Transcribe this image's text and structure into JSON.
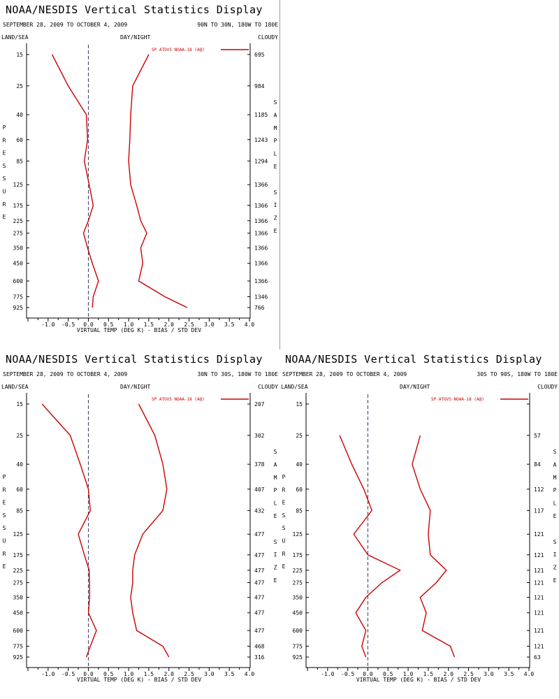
{
  "colors": {
    "series": "#cc0000",
    "zero_line": "#3a3a6a"
  },
  "chart_data": [
    {
      "type": "line",
      "title": "NOAA/NESDIS Vertical Statistics Display",
      "dates": "SEPTEMBER 28, 2009 TO OCTOBER 4, 2009",
      "region": "90N TO 30N, 180W TO 180E",
      "left_header": "LAND/SEA",
      "center_header": "DAY/NIGHT",
      "right_header": "CLOUDY",
      "legend": "SP ATOVS NOAA-18 (A@)",
      "legend_placement": "top-right",
      "xlabel": "VIRTUAL TEMP (DEG K) - BIAS / STD DEV",
      "ylabel": "PRESSURE",
      "y2label": "SAMPLE SIZE",
      "xlim": [
        -1.5,
        4.0
      ],
      "x_ticks": [
        "-1.0",
        "-0.5",
        "0.0",
        "0.5",
        "1.0",
        "1.5",
        "2.0",
        "2.5",
        "3.0",
        "3.5",
        "4.0"
      ],
      "pressure_levels": [
        "15",
        "25",
        "40",
        "60",
        "85",
        "125",
        "175",
        "225",
        "275",
        "350",
        "450",
        "600",
        "775",
        "925"
      ],
      "sample_size": [
        "695",
        "984",
        "1185",
        "1243",
        "1294",
        "1366",
        "1366",
        "1366",
        "1366",
        "1366",
        "1366",
        "1366",
        "1346",
        "766"
      ],
      "series": [
        {
          "values": [
            -0.9,
            -0.5,
            -0.05,
            -0.02,
            -0.1,
            0.02,
            0.12,
            0.0,
            -0.12,
            -0.02,
            0.1,
            0.25,
            0.12,
            0.1
          ]
        },
        {
          "values": [
            1.5,
            1.1,
            1.05,
            1.03,
            1.0,
            1.05,
            1.2,
            1.3,
            1.45,
            1.3,
            1.35,
            1.25,
            1.9,
            2.45
          ]
        }
      ]
    },
    {
      "type": "line",
      "title": "NOAA/NESDIS Vertical Statistics Display",
      "dates": "SEPTEMBER 28, 2009 TO OCTOBER 4, 2009",
      "region": "30N TO 30S, 180W TO 180E",
      "left_header": "LAND/SEA",
      "center_header": "DAY/NIGHT",
      "right_header": "CLOUDY",
      "legend": "SP ATOVS NOAA-18 (A@)",
      "legend_placement": "top-right",
      "xlabel": "VIRTUAL TEMP (DEG K) - BIAS / STD DEV",
      "ylabel": "PRESSURE",
      "y2label": "SAMPLE SIZE",
      "xlim": [
        -1.5,
        4.0
      ],
      "x_ticks": [
        "-1.0",
        "-0.5",
        "0.0",
        "0.5",
        "1.0",
        "1.5",
        "2.0",
        "2.5",
        "3.0",
        "3.5",
        "4.0"
      ],
      "pressure_levels": [
        "15",
        "25",
        "40",
        "60",
        "85",
        "125",
        "175",
        "225",
        "275",
        "350",
        "450",
        "600",
        "775",
        "925"
      ],
      "sample_size": [
        "207",
        "302",
        "378",
        "407",
        "432",
        "477",
        "477",
        "477",
        "477",
        "477",
        "477",
        "477",
        "468",
        "316"
      ],
      "series": [
        {
          "values": [
            -1.15,
            -0.45,
            -0.2,
            0.0,
            0.05,
            -0.25,
            -0.1,
            0.02,
            0.03,
            0.03,
            0.0,
            0.2,
            0.05,
            -0.05
          ]
        },
        {
          "values": [
            1.25,
            1.65,
            1.85,
            1.95,
            1.85,
            1.35,
            1.15,
            1.1,
            1.1,
            1.05,
            1.1,
            1.2,
            1.85,
            2.0
          ]
        }
      ]
    },
    {
      "type": "line",
      "title": "NOAA/NESDIS Vertical Statistics Display",
      "dates": "SEPTEMBER 28, 2009 TO OCTOBER 4, 2009",
      "region": "30S TO 90S, 180W TO 180E",
      "left_header": "LAND/SEA",
      "center_header": "DAY/NIGHT",
      "right_header": "CLOUDY",
      "legend": "SP ATOVS NOAA-18 (A@)",
      "legend_placement": "top-right",
      "xlabel": "VIRTUAL TEMP (DEG K) - BIAS / STD DEV",
      "ylabel": "PRESSURE",
      "y2label": "SAMPLE SIZE",
      "xlim": [
        -1.5,
        4.0
      ],
      "x_ticks": [
        "-1.0",
        "-0.5",
        "0.0",
        "0.5",
        "1.0",
        "1.5",
        "2.0",
        "2.5",
        "3.0",
        "3.5",
        "4.0"
      ],
      "pressure_levels": [
        "15",
        "25",
        "40",
        "60",
        "85",
        "125",
        "175",
        "225",
        "275",
        "350",
        "450",
        "600",
        "775",
        "925"
      ],
      "sample_size": [
        "",
        "57",
        "84",
        "112",
        "117",
        "121",
        "121",
        "121",
        "121",
        "121",
        "121",
        "121",
        "121",
        "63"
      ],
      "series": [
        {
          "values": [
            null,
            -0.7,
            -0.4,
            -0.1,
            0.1,
            -0.35,
            0.0,
            0.8,
            0.35,
            -0.05,
            -0.3,
            -0.05,
            -0.15,
            -0.05
          ]
        },
        {
          "values": [
            null,
            1.3,
            1.1,
            1.3,
            1.55,
            1.5,
            1.55,
            1.95,
            1.7,
            1.3,
            1.45,
            1.35,
            2.05,
            2.15
          ]
        }
      ]
    }
  ]
}
